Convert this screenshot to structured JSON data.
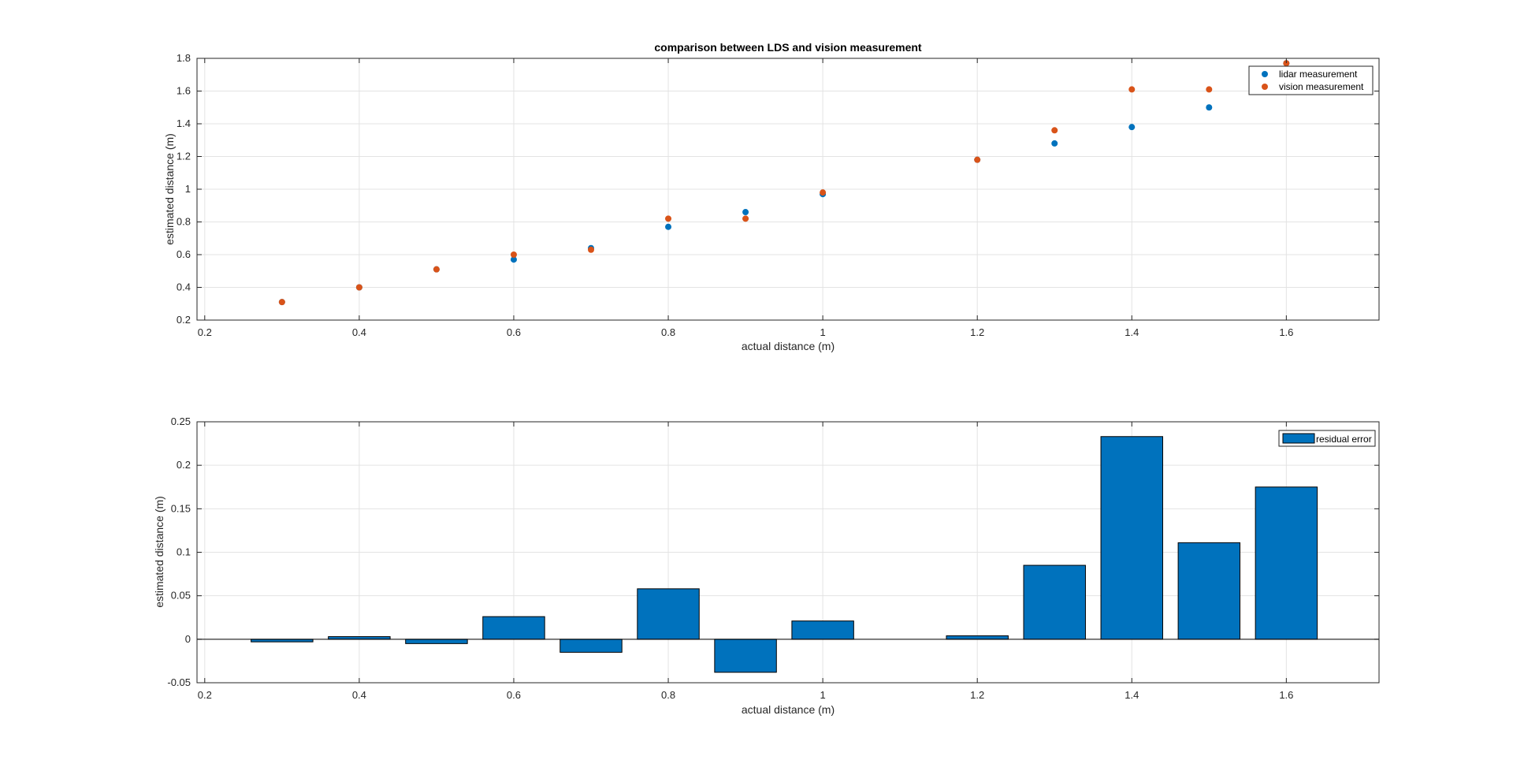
{
  "chart_data": [
    {
      "type": "scatter",
      "title": "comparison between LDS and vision measurement",
      "xlabel": "actual distance (m)",
      "ylabel": "estimated distance (m)",
      "xlim": [
        0.19,
        1.72
      ],
      "ylim": [
        0.2,
        1.8
      ],
      "xticks": [
        "0.2",
        "0.4",
        "0.6",
        "0.8",
        "1",
        "1.2",
        "1.4",
        "1.6"
      ],
      "yticks": [
        "0.2",
        "0.4",
        "0.6",
        "0.8",
        "1",
        "1.2",
        "1.4",
        "1.6",
        "1.8"
      ],
      "grid": true,
      "legend_position": "top-right",
      "series": [
        {
          "name": "lidar measurement",
          "color": "#0072BD",
          "x": [
            0.3,
            0.4,
            0.5,
            0.6,
            0.7,
            0.8,
            0.9,
            1.0,
            1.2,
            1.3,
            1.4,
            1.5,
            1.6
          ],
          "y": [
            0.31,
            0.4,
            0.51,
            0.57,
            0.64,
            0.77,
            0.86,
            0.97,
            1.18,
            1.28,
            1.38,
            1.5,
            1.77
          ]
        },
        {
          "name": "vision measurement",
          "color": "#D95319",
          "x": [
            0.3,
            0.4,
            0.5,
            0.6,
            0.7,
            0.8,
            0.9,
            1.0,
            1.2,
            1.3,
            1.4,
            1.5,
            1.6
          ],
          "y": [
            0.31,
            0.4,
            0.51,
            0.6,
            0.63,
            0.82,
            0.82,
            0.98,
            1.18,
            1.36,
            1.61,
            1.61,
            1.77
          ]
        }
      ]
    },
    {
      "type": "bar",
      "title": "",
      "xlabel": "actual distance (m)",
      "ylabel": "estimated distance (m)",
      "xlim": [
        0.19,
        1.72
      ],
      "ylim": [
        -0.05,
        0.25
      ],
      "xticks": [
        "0.2",
        "0.4",
        "0.6",
        "0.8",
        "1",
        "1.2",
        "1.4",
        "1.6"
      ],
      "yticks": [
        "-0.05",
        "0",
        "0.05",
        "0.1",
        "0.15",
        "0.2",
        "0.25"
      ],
      "grid": true,
      "legend_position": "top-right",
      "bar_width": 0.08,
      "series": [
        {
          "name": "residual error",
          "color": "#0072BD",
          "x": [
            0.3,
            0.4,
            0.5,
            0.6,
            0.7,
            0.8,
            0.9,
            1.0,
            1.2,
            1.3,
            1.4,
            1.5,
            1.6
          ],
          "values": [
            -0.003,
            0.003,
            -0.005,
            0.026,
            -0.015,
            0.058,
            -0.038,
            0.021,
            0.004,
            0.085,
            0.233,
            0.111,
            0.175
          ]
        }
      ]
    }
  ]
}
